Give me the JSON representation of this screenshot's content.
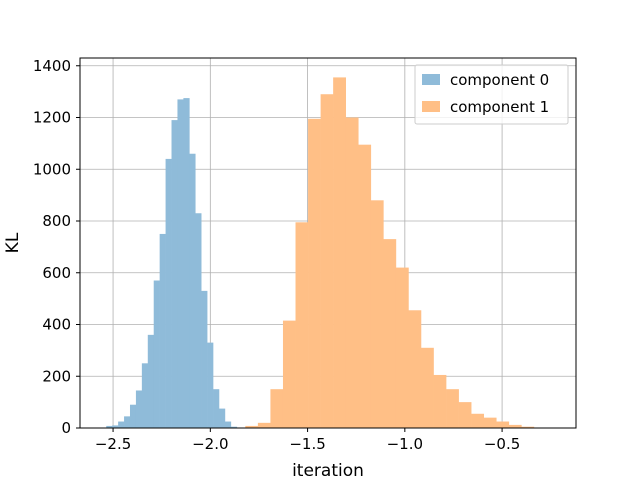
{
  "chart_data": {
    "type": "bar",
    "subtype": "histogram",
    "title": "",
    "xlabel": "iteration",
    "ylabel": "KL",
    "xlim": [
      -2.67,
      -0.12
    ],
    "ylim": [
      0,
      1430
    ],
    "xticks": [
      -2.5,
      -2.0,
      -1.5,
      -1.0,
      -0.5
    ],
    "xtick_labels": [
      "−2.5",
      "−2.0",
      "−1.5",
      "−1.0",
      "−0.5"
    ],
    "yticks": [
      0,
      200,
      400,
      600,
      800,
      1000,
      1200,
      1400
    ],
    "ytick_labels": [
      "0",
      "200",
      "400",
      "600",
      "800",
      "1000",
      "1200",
      "1400"
    ],
    "grid": true,
    "legend_position": "top-right",
    "series": [
      {
        "name": "component 0",
        "color": "#8fbbd9",
        "bin_start": -2.535,
        "bin_width": 0.0305,
        "values": [
          8,
          10,
          25,
          45,
          90,
          145,
          250,
          360,
          570,
          750,
          1040,
          1190,
          1270,
          1275,
          1060,
          830,
          530,
          330,
          150,
          75,
          25,
          5
        ]
      },
      {
        "name": "component 1",
        "color": "#ffbf86",
        "bin_start": -1.82,
        "bin_width": 0.0645,
        "values": [
          8,
          20,
          150,
          415,
          795,
          1195,
          1290,
          1355,
          1200,
          1095,
          880,
          730,
          620,
          455,
          310,
          205,
          150,
          100,
          55,
          40,
          25,
          12,
          5
        ]
      }
    ]
  }
}
